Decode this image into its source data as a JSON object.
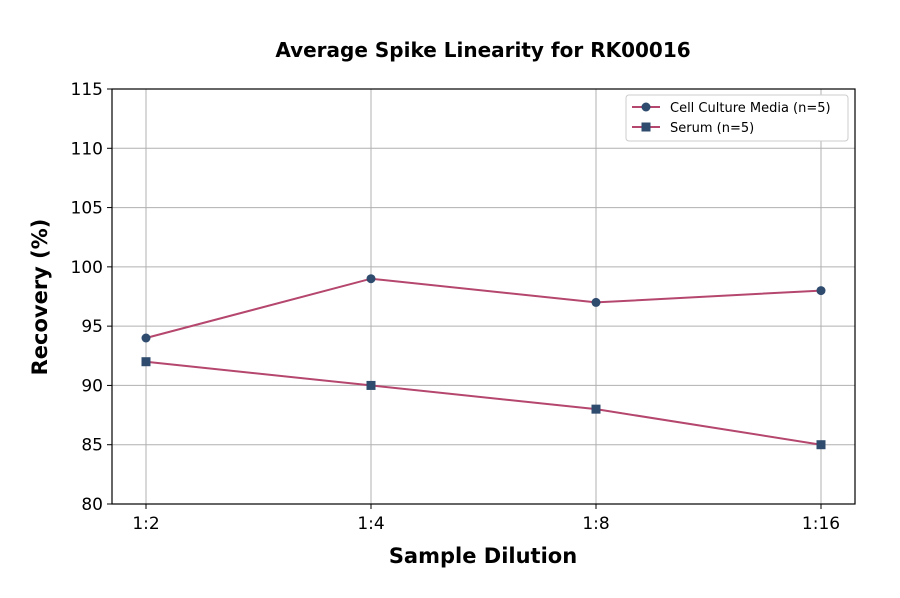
{
  "chart_data": {
    "type": "line",
    "title": "Average Spike Linearity for RK00016",
    "xlabel": "Sample Dilution",
    "ylabel": "Recovery (%)",
    "categories": [
      "1:2",
      "1:4",
      "1:8",
      "1:16"
    ],
    "ylim": [
      80,
      115
    ],
    "yticks": [
      80,
      85,
      90,
      95,
      100,
      105,
      110,
      115
    ],
    "grid": true,
    "legend_position": "top-right",
    "series": [
      {
        "name": "Cell Culture Media (n=5)",
        "values": [
          94,
          99,
          97,
          98
        ],
        "marker": "circle",
        "line_color": "#b5466d",
        "marker_color": "#2f4b6e"
      },
      {
        "name": "Serum (n=5)",
        "values": [
          92,
          90,
          88,
          85
        ],
        "marker": "square",
        "line_color": "#b5466d",
        "marker_color": "#2f4b6e"
      }
    ]
  }
}
